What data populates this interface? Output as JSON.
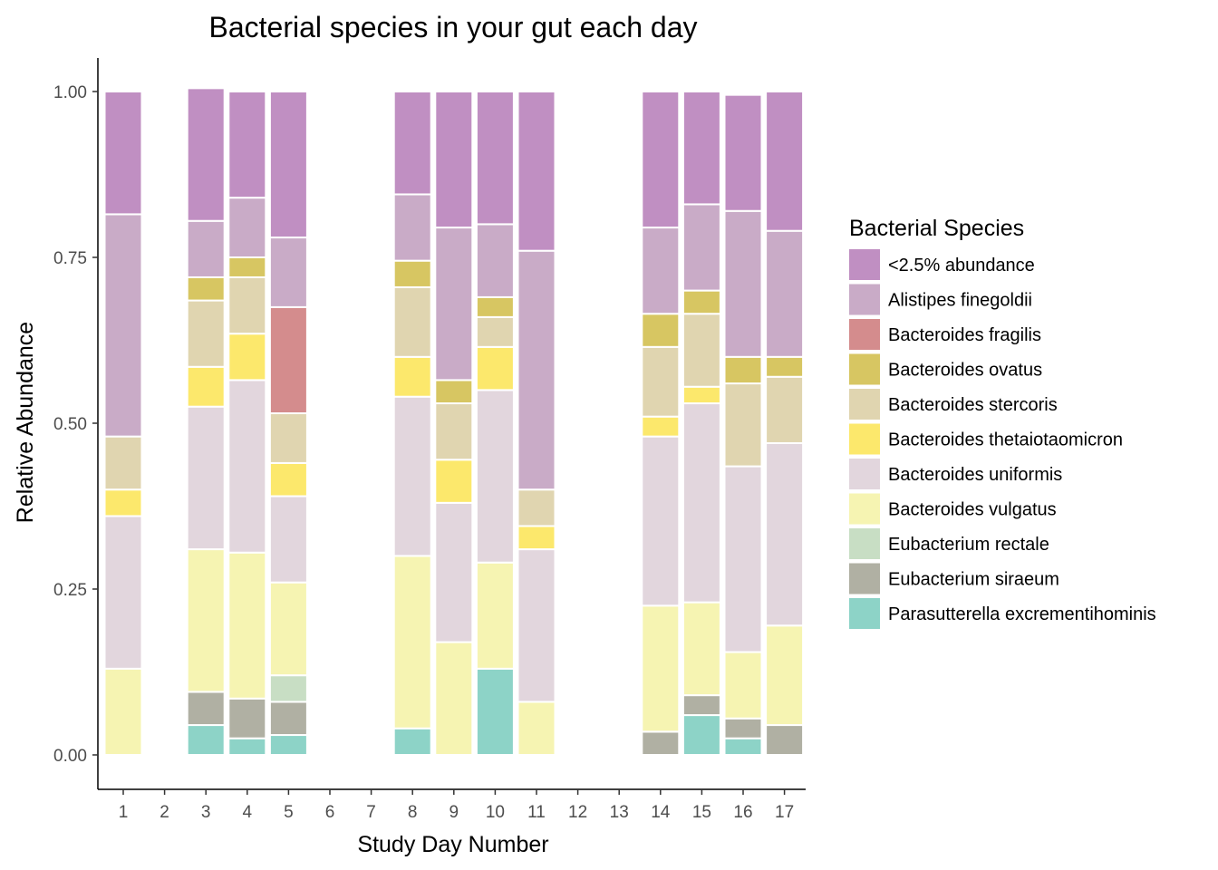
{
  "chart_data": {
    "type": "bar",
    "stacked": true,
    "title": "Bacterial species in your gut each day",
    "xlabel": "Study Day Number",
    "ylabel": "Relative Abundance",
    "ylim": [
      0,
      1.05
    ],
    "yticks": [
      "0.00",
      "0.25",
      "0.50",
      "0.75",
      "1.00"
    ],
    "ytick_values": [
      0,
      0.25,
      0.5,
      0.75,
      1.0
    ],
    "categories": [
      "1",
      "2",
      "3",
      "4",
      "5",
      "6",
      "7",
      "8",
      "9",
      "10",
      "11",
      "12",
      "13",
      "14",
      "15",
      "16",
      "17"
    ],
    "grid": false,
    "legend": {
      "title": "Bacterial Species",
      "placement": "right"
    },
    "series": [
      {
        "name": "<2.5% abundance",
        "color": "#C08FC2",
        "values": [
          0.185,
          0,
          0.2,
          0.16,
          0.22,
          0,
          0,
          0.155,
          0.205,
          0.2,
          0.24,
          0,
          0,
          0.205,
          0.17,
          0.175,
          0.21
        ]
      },
      {
        "name": "Alistipes finegoldii",
        "color": "#C9ABC7",
        "values": [
          0.335,
          0,
          0.085,
          0.09,
          0.105,
          0,
          0,
          0.1,
          0.23,
          0.11,
          0.36,
          0,
          0,
          0.13,
          0.13,
          0.22,
          0.19
        ]
      },
      {
        "name": "Bacteroides fragilis",
        "color": "#D48C8D",
        "values": [
          0,
          0,
          0,
          0,
          0.16,
          0,
          0,
          0,
          0,
          0,
          0,
          0,
          0,
          0,
          0,
          0,
          0
        ]
      },
      {
        "name": "Bacteroides ovatus",
        "color": "#D7C662",
        "values": [
          0,
          0,
          0.035,
          0.03,
          0,
          0,
          0,
          0.04,
          0.035,
          0.03,
          0,
          0,
          0,
          0.05,
          0.035,
          0.04,
          0.03
        ]
      },
      {
        "name": "Bacteroides stercoris",
        "color": "#E0D5B0",
        "values": [
          0.08,
          0,
          0.1,
          0.085,
          0.075,
          0,
          0,
          0.105,
          0.085,
          0.045,
          0.055,
          0,
          0,
          0.105,
          0.11,
          0.125,
          0.1
        ]
      },
      {
        "name": "Bacteroides thetaiotaomicron",
        "color": "#FCE86C",
        "values": [
          0.04,
          0,
          0.06,
          0.07,
          0.05,
          0,
          0,
          0.06,
          0.065,
          0.065,
          0.035,
          0,
          0,
          0.03,
          0.025,
          0,
          0
        ]
      },
      {
        "name": "Bacteroides uniformis",
        "color": "#E2D6DD",
        "values": [
          0.23,
          0,
          0.215,
          0.26,
          0.13,
          0,
          0,
          0.24,
          0.21,
          0.26,
          0.23,
          0,
          0,
          0.255,
          0.3,
          0.28,
          0.275
        ]
      },
      {
        "name": "Bacteroides vulgatus",
        "color": "#F6F4B2",
        "values": [
          0.13,
          0,
          0.215,
          0.22,
          0.14,
          0,
          0,
          0.26,
          0.17,
          0.16,
          0.08,
          0,
          0,
          0.19,
          0.14,
          0.1,
          0.15
        ]
      },
      {
        "name": "Eubacterium rectale",
        "color": "#C8DEC4",
        "values": [
          0,
          0,
          0,
          0,
          0.04,
          0,
          0,
          0,
          0,
          0,
          0,
          0,
          0,
          0,
          0,
          0,
          0
        ]
      },
      {
        "name": "Eubacterium siraeum",
        "color": "#B0B0A3",
        "values": [
          0,
          0,
          0.05,
          0.06,
          0.05,
          0,
          0,
          0,
          0,
          0,
          0,
          0,
          0,
          0.035,
          0.03,
          0.03,
          0.045
        ]
      },
      {
        "name": "Parasutterella excrementihominis",
        "color": "#8DD3C7",
        "values": [
          0,
          0,
          0.045,
          0.025,
          0.03,
          0,
          0,
          0.04,
          0,
          0.13,
          0,
          0,
          0,
          0,
          0.06,
          0.025,
          0
        ]
      }
    ]
  }
}
